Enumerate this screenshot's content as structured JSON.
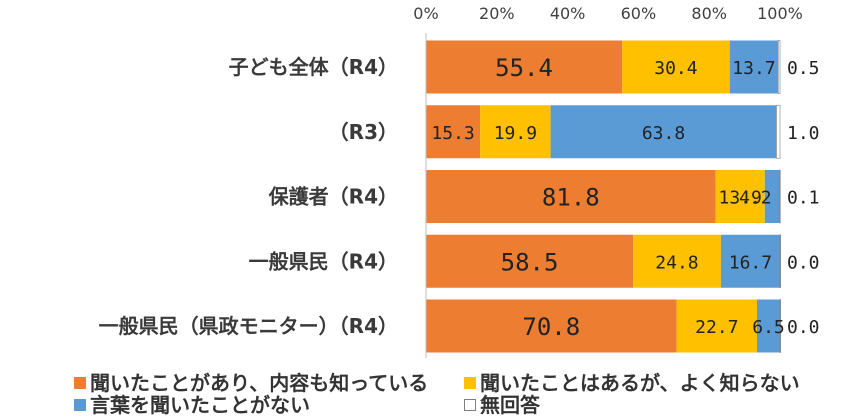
{
  "chart_data": {
    "type": "bar",
    "orientation": "horizontal",
    "stacked": "percent",
    "categories": [
      "子ども全体（R4）",
      "（R3）",
      "保護者（R4）",
      "一般県民（R4）",
      "一般県民（県政モニター）（R4）"
    ],
    "series": [
      {
        "name": "聞いたことがあり、内容も知っている",
        "values": [
          55.4,
          15.3,
          81.8,
          58.5,
          70.8
        ],
        "labels": [
          "55.4",
          "15.3",
          "81.8",
          "58.5",
          "70.8"
        ],
        "color": "#ED7D31"
      },
      {
        "name": "聞いたことはあるが、よく知らない",
        "values": [
          30.4,
          19.9,
          13.9,
          24.8,
          22.7
        ],
        "labels": [
          "30.4",
          "19.9",
          "13.9",
          "24.8",
          "22.7"
        ],
        "color": "#FFC000"
      },
      {
        "name": "言葉を聞いたことがない",
        "values": [
          13.7,
          63.8,
          4.2,
          16.7,
          6.5
        ],
        "labels": [
          "13.7",
          "63.8",
          "4.2",
          "16.7",
          "6.5"
        ],
        "color": "#5B9BD5"
      },
      {
        "name": "無回答",
        "values": [
          0.5,
          1.0,
          0.1,
          0.0,
          0.0
        ],
        "labels": [
          "0.5",
          "1.0",
          "0.1",
          "0.0",
          "0.0"
        ],
        "color": "#FFFFFF"
      }
    ],
    "xticks": [
      "0%",
      "20%",
      "40%",
      "60%",
      "80%",
      "100%"
    ],
    "xlim": [
      0,
      100
    ],
    "title": "",
    "xlabel": "",
    "ylabel": "",
    "grid": false,
    "legend_position": "bottom"
  }
}
